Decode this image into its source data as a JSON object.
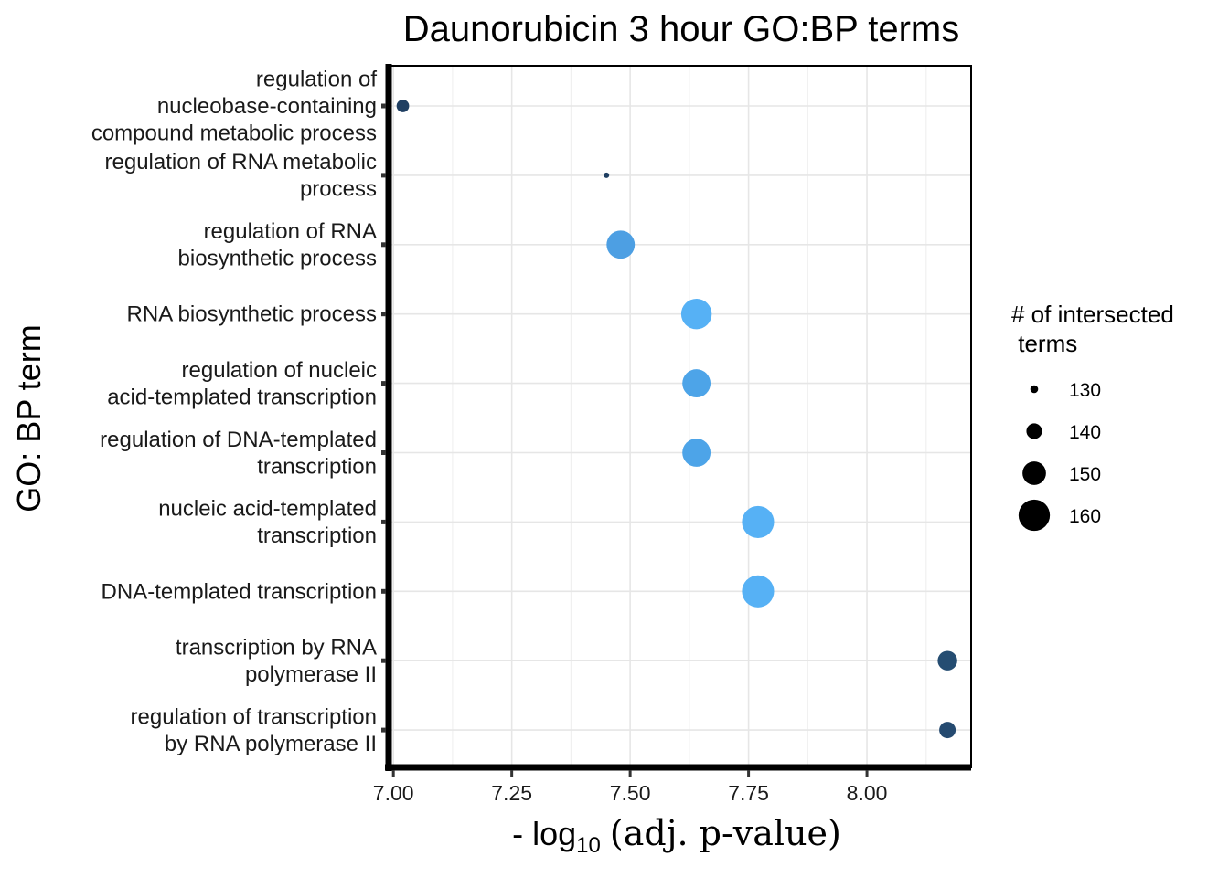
{
  "chart_data": {
    "type": "scatter",
    "title": "Daunorubicin 3 hour GO:BP terms",
    "xlabel": {
      "prefix": "- log",
      "subscript": "10",
      "text": "(adj. p-value)"
    },
    "ylabel": "GO: BP term",
    "xlim": [
      6.99,
      8.22
    ],
    "x_ticks": [
      "7.00",
      "7.25",
      "7.50",
      "7.75",
      "8.00"
    ],
    "x_tick_values": [
      7.0,
      7.25,
      7.5,
      7.75,
      8.0
    ],
    "grid": true,
    "legend": {
      "title_lines": [
        "# of intersected",
        " terms"
      ],
      "placement": "right",
      "sizes": [
        130,
        140,
        150,
        160
      ]
    },
    "size_range": [
      127,
      162
    ],
    "points": [
      {
        "term": [
          "regulation of",
          "nucleobase-containing",
          "compound metabolic process"
        ],
        "x": 7.02,
        "size": 136,
        "color": "#1f3f62"
      },
      {
        "term": [
          "regulation of RNA metabolic",
          "process"
        ],
        "x": 7.45,
        "size": 127,
        "color": "#1f3f62"
      },
      {
        "term": [
          "regulation of RNA",
          "biosynthetic process"
        ],
        "x": 7.48,
        "size": 156,
        "color": "#4d9fe3"
      },
      {
        "term": [
          "RNA biosynthetic process"
        ],
        "x": 7.64,
        "size": 159,
        "color": "#56b1f5"
      },
      {
        "term": [
          "regulation of nucleic",
          "acid-templated transcription"
        ],
        "x": 7.64,
        "size": 156,
        "color": "#4da4e8"
      },
      {
        "term": [
          "regulation of DNA-templated",
          "transcription"
        ],
        "x": 7.64,
        "size": 156,
        "color": "#4da4e8"
      },
      {
        "term": [
          "nucleic acid-templated",
          "transcription"
        ],
        "x": 7.77,
        "size": 161,
        "color": "#56b1f5"
      },
      {
        "term": [
          "DNA-templated transcription"
        ],
        "x": 7.77,
        "size": 161,
        "color": "#56b1f5"
      },
      {
        "term": [
          "transcription by RNA",
          "polymerase II"
        ],
        "x": 8.17,
        "size": 145,
        "color": "#254d72"
      },
      {
        "term": [
          "regulation of transcription",
          "by RNA polymerase II"
        ],
        "x": 8.17,
        "size": 141,
        "color": "#254a70"
      }
    ]
  }
}
